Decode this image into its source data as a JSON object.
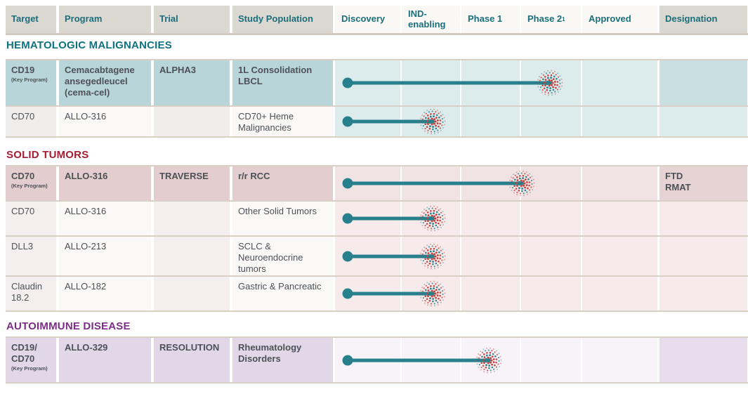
{
  "colors": {
    "bar_teal": "#27808c",
    "burst_red": "#c4403d",
    "burst_teal": "#2a7f8a",
    "header_bg": "#dbd8d1",
    "header_text_teal": "#1b6e7c",
    "section_teal": "#0e7280",
    "section_red": "#a41d33",
    "section_purple": "#7b2c87",
    "body_text": "#4d5156",
    "row_border_tan": "#d8cfc6"
  },
  "header": {
    "columns_left": [
      "Target",
      "Program",
      "Trial",
      "Study Population"
    ],
    "columns_phases": [
      "Discovery",
      "IND-enabling",
      "Phase 1",
      "Phase 2",
      "Approved"
    ],
    "phase2_footnote_marker": "1",
    "column_designation": "Designation"
  },
  "sections": [
    {
      "title": "HEMATOLOGIC MALIGNANCIES",
      "theme": "teal",
      "rows": [
        {
          "target": "CD19",
          "target_note": "(Key Program)",
          "program": "Cemacabtagene ansegedleucel (cema-cel)",
          "trial": "ALPHA3",
          "study_population": "1L Consolidation LBCL",
          "key_program": true,
          "designation": "",
          "phase_reached": "Phase 2 (mid)",
          "bar": {
            "start_pct": 3.9,
            "end_pct": 66.7
          }
        },
        {
          "target": "CD70",
          "target_note": "",
          "program": "ALLO-316",
          "trial": "",
          "study_population": "CD70+ Heme Malignancies",
          "key_program": false,
          "designation": "",
          "phase_reached": "IND-enabling (mid)",
          "bar": {
            "start_pct": 3.9,
            "end_pct": 30.3
          }
        }
      ]
    },
    {
      "title": "SOLID TUMORS",
      "theme": "rose",
      "rows": [
        {
          "target": "CD70",
          "target_note": "(Key Program)",
          "program": "ALLO-316",
          "trial": "TRAVERSE",
          "study_population": "r/r RCC",
          "key_program": true,
          "designation": "FTD\nRMAT",
          "phase_reached": "Phase 1 / Phase 2 boundary",
          "bar": {
            "start_pct": 3.9,
            "end_pct": 58.0
          }
        },
        {
          "target": "CD70",
          "target_note": "",
          "program": "ALLO-316",
          "trial": "",
          "study_population": "Other Solid Tumors",
          "key_program": false,
          "designation": "",
          "phase_reached": "IND-enabling (mid)",
          "bar": {
            "start_pct": 3.9,
            "end_pct": 30.3
          }
        },
        {
          "target": "DLL3",
          "target_note": "",
          "program": "ALLO-213",
          "trial": "",
          "study_population": "SCLC & Neuroendocrine tumors",
          "key_program": false,
          "designation": "",
          "phase_reached": "IND-enabling (mid)",
          "bar": {
            "start_pct": 3.9,
            "end_pct": 30.3
          }
        },
        {
          "target": "Claudin 18.2",
          "target_note": "",
          "program": "ALLO-182",
          "trial": "",
          "study_population": "Gastric & Pancreatic",
          "key_program": false,
          "designation": "",
          "phase_reached": "IND-enabling (mid)",
          "bar": {
            "start_pct": 3.9,
            "end_pct": 30.3
          }
        }
      ]
    },
    {
      "title": "AUTOIMMUNE DISEASE",
      "theme": "purple",
      "rows": [
        {
          "target": "CD19/\nCD70",
          "target_note": "(Key Program)",
          "program": "ALLO-329",
          "trial": "RESOLUTION",
          "study_population": "Rheumatology Disorders",
          "key_program": true,
          "designation": "",
          "phase_reached": "Phase 1 (mid)",
          "bar": {
            "start_pct": 3.9,
            "end_pct": 47.7
          }
        }
      ]
    }
  ],
  "chart_data": {
    "type": "bar",
    "orientation": "horizontal",
    "title": "Clinical pipeline phase progression",
    "x_axis_phases": [
      "Discovery",
      "IND-enabling",
      "Phase 1",
      "Phase 2",
      "Approved"
    ],
    "track_range_pct": [
      0,
      100
    ],
    "series": [
      {
        "name": "CD19 · cema-cel · ALPHA3 · 1L Consolidation LBCL",
        "start_pct": 3.9,
        "end_pct": 66.7,
        "phase_reached": "Phase 2 (mid)"
      },
      {
        "name": "CD70 · ALLO-316 · CD70+ Heme Malignancies",
        "start_pct": 3.9,
        "end_pct": 30.3,
        "phase_reached": "IND-enabling (mid)"
      },
      {
        "name": "CD70 · ALLO-316 · TRAVERSE · r/r RCC",
        "start_pct": 3.9,
        "end_pct": 58.0,
        "phase_reached": "Phase 1/2 boundary"
      },
      {
        "name": "CD70 · ALLO-316 · Other Solid Tumors",
        "start_pct": 3.9,
        "end_pct": 30.3,
        "phase_reached": "IND-enabling (mid)"
      },
      {
        "name": "DLL3 · ALLO-213 · SCLC & Neuroendocrine tumors",
        "start_pct": 3.9,
        "end_pct": 30.3,
        "phase_reached": "IND-enabling (mid)"
      },
      {
        "name": "Claudin 18.2 · ALLO-182 · Gastric & Pancreatic",
        "start_pct": 3.9,
        "end_pct": 30.3,
        "phase_reached": "IND-enabling (mid)"
      },
      {
        "name": "CD19/CD70 · ALLO-329 · RESOLUTION · Rheumatology Disorders",
        "start_pct": 3.9,
        "end_pct": 47.7,
        "phase_reached": "Phase 1 (mid)"
      }
    ],
    "legend": "off",
    "grid": "column separators only"
  }
}
